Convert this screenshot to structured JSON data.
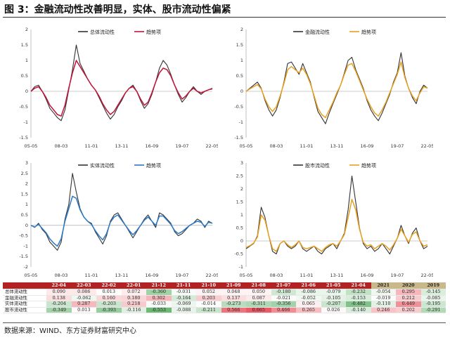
{
  "title": "图 3：金融流动性改善明显，实体、股市流动性偏紧",
  "source": "数据来源：WIND、东方证券财富研究中心",
  "colors": {
    "raw_line": "#333333",
    "trend_total": "#c0143c",
    "trend_finance": "#e8a020",
    "trend_real": "#2a78c8",
    "trend_stock": "#e8a020",
    "header_red": "#b22222",
    "header_year": "#c9b98a"
  },
  "chart_data": [
    {
      "type": "line",
      "title": "",
      "x_ticks": [
        "05-05",
        "08-03",
        "11-01",
        "13-11",
        "16-09",
        "19-07",
        "22-05"
      ],
      "ylim": [
        -1.5,
        2
      ],
      "y_ticks": [
        "2",
        "1.5",
        "1",
        "0.5",
        "0",
        "-0.5",
        "-1",
        "-1.5"
      ],
      "legend_position": "top-center",
      "series": [
        {
          "name": "总体流动性",
          "values": [
            0.0,
            0.15,
            0.2,
            0.0,
            -0.25,
            -0.55,
            -0.7,
            -0.85,
            -0.95,
            -0.6,
            0.05,
            0.7,
            1.5,
            0.9,
            0.65,
            0.4,
            0.2,
            0.05,
            -0.2,
            -0.45,
            -0.7,
            -0.9,
            -0.75,
            -0.5,
            -0.3,
            -0.05,
            0.1,
            0.2,
            0.0,
            -0.3,
            -0.55,
            -0.4,
            -0.1,
            0.3,
            0.75,
            1.0,
            0.85,
            0.55,
            0.2,
            -0.1,
            -0.35,
            -0.2,
            0.0,
            0.15,
            0.0,
            -0.1,
            0.0,
            0.05,
            0.1
          ]
        },
        {
          "name": "趋势项",
          "values": [
            0.0,
            0.1,
            0.15,
            0.0,
            -0.2,
            -0.45,
            -0.6,
            -0.75,
            -0.8,
            -0.45,
            0.1,
            0.6,
            1.0,
            0.8,
            0.6,
            0.4,
            0.2,
            0.05,
            -0.15,
            -0.4,
            -0.6,
            -0.75,
            -0.65,
            -0.45,
            -0.25,
            -0.05,
            0.1,
            0.15,
            0.0,
            -0.25,
            -0.45,
            -0.35,
            -0.05,
            0.3,
            0.6,
            0.75,
            0.7,
            0.5,
            0.2,
            -0.05,
            -0.25,
            -0.15,
            0.0,
            0.1,
            0.0,
            -0.05,
            0.0,
            0.05,
            0.08
          ]
        }
      ]
    },
    {
      "type": "line",
      "title": "",
      "x_ticks": [
        "05-05",
        "08-03",
        "11-01",
        "13-11",
        "16-09",
        "19-07",
        "22-05"
      ],
      "ylim": [
        -1.5,
        2
      ],
      "y_ticks": [
        "2",
        "1.5",
        "1",
        "0.5",
        "0",
        "-0.5",
        "-1",
        "-1.5"
      ],
      "legend_position": "top-center",
      "series": [
        {
          "name": "金融流动性",
          "values": [
            0.0,
            0.1,
            0.2,
            0.3,
            0.1,
            -0.3,
            -0.6,
            -0.8,
            -0.6,
            -0.2,
            0.3,
            0.9,
            0.95,
            0.75,
            0.55,
            0.9,
            0.6,
            0.3,
            -0.2,
            -0.65,
            -0.85,
            -1.05,
            -0.7,
            -0.4,
            -0.1,
            0.2,
            0.6,
            1.0,
            1.1,
            0.7,
            0.4,
            0.1,
            -0.3,
            -0.6,
            -0.8,
            -0.95,
            -0.7,
            -0.4,
            -0.1,
            0.3,
            0.6,
            1.25,
            0.5,
            0.1,
            -0.2,
            -0.4,
            0.0,
            0.2,
            0.1
          ]
        },
        {
          "name": "趋势项",
          "values": [
            0.0,
            0.08,
            0.15,
            0.22,
            0.08,
            -0.25,
            -0.5,
            -0.65,
            -0.5,
            -0.15,
            0.25,
            0.7,
            0.8,
            0.7,
            0.6,
            0.75,
            0.55,
            0.25,
            -0.15,
            -0.55,
            -0.75,
            -0.85,
            -0.6,
            -0.35,
            -0.05,
            0.2,
            0.55,
            0.85,
            0.9,
            0.65,
            0.35,
            0.05,
            -0.25,
            -0.5,
            -0.7,
            -0.8,
            -0.6,
            -0.35,
            -0.05,
            0.25,
            0.55,
            0.95,
            0.45,
            0.1,
            -0.15,
            -0.3,
            -0.05,
            0.15,
            0.1
          ]
        }
      ]
    },
    {
      "type": "line",
      "title": "",
      "x_ticks": [
        "05-05",
        "08-03",
        "11-01",
        "13-11",
        "16-09",
        "19-07",
        "22-05"
      ],
      "ylim": [
        -2,
        3
      ],
      "y_ticks": [
        "3",
        "2.5",
        "2",
        "1.5",
        "1",
        "0.5",
        "0",
        "-0.5",
        "-1",
        "-1.5",
        "-2"
      ],
      "legend_position": "top-center",
      "series": [
        {
          "name": "实体流动性",
          "values": [
            0.0,
            -0.1,
            0.1,
            -0.2,
            -0.4,
            -0.8,
            -1.0,
            -1.2,
            -0.8,
            0.3,
            1.0,
            2.5,
            1.6,
            0.8,
            0.4,
            0.2,
            0.1,
            -0.3,
            -0.6,
            -0.9,
            -0.5,
            0.2,
            0.5,
            0.6,
            0.3,
            0.0,
            -0.3,
            -0.6,
            -0.3,
            0.0,
            0.3,
            0.5,
            0.2,
            -0.1,
            0.6,
            0.5,
            0.3,
            0.1,
            -0.3,
            -0.5,
            -0.4,
            -0.2,
            0.0,
            0.1,
            0.3,
            0.2,
            -0.1,
            0.2,
            0.1
          ]
        },
        {
          "name": "趋势项",
          "values": [
            0.0,
            -0.08,
            0.05,
            -0.15,
            -0.35,
            -0.65,
            -0.85,
            -1.0,
            -0.65,
            0.2,
            0.8,
            1.4,
            1.3,
            0.75,
            0.4,
            0.2,
            0.05,
            -0.25,
            -0.5,
            -0.7,
            -0.4,
            0.15,
            0.4,
            0.5,
            0.25,
            0.0,
            -0.25,
            -0.45,
            -0.25,
            0.0,
            0.25,
            0.4,
            0.2,
            0.0,
            0.45,
            0.45,
            0.25,
            0.05,
            -0.25,
            -0.4,
            -0.3,
            -0.15,
            0.0,
            0.1,
            0.2,
            0.15,
            -0.05,
            0.15,
            0.1
          ]
        }
      ]
    },
    {
      "type": "line",
      "title": "",
      "x_ticks": [
        "05-05",
        "08-03",
        "11-01",
        "13-11",
        "16-09",
        "19-07",
        "22-05"
      ],
      "ylim": [
        -1,
        3
      ],
      "y_ticks": [
        "3",
        "2.5",
        "2",
        "1.5",
        "1",
        "0.5",
        "0",
        "-0.5",
        "-1"
      ],
      "legend_position": "top-center",
      "series": [
        {
          "name": "股市流动性",
          "values": [
            -0.3,
            -0.2,
            -0.1,
            0.2,
            1.3,
            0.9,
            0.2,
            -0.4,
            -0.5,
            -0.1,
            0.0,
            -0.2,
            -0.3,
            -0.2,
            0.0,
            -0.3,
            -0.4,
            -0.3,
            -0.2,
            -0.4,
            -0.5,
            -0.3,
            -0.2,
            -0.1,
            -0.3,
            0.0,
            0.3,
            1.2,
            2.5,
            1.5,
            0.5,
            -0.1,
            -0.3,
            -0.2,
            -0.4,
            -0.3,
            -0.1,
            -0.3,
            -0.5,
            -0.2,
            0.1,
            0.6,
            0.2,
            -0.1,
            0.3,
            0.5,
            0.0,
            -0.3,
            -0.2
          ]
        },
        {
          "name": "趋势项",
          "values": [
            -0.25,
            -0.18,
            -0.08,
            0.15,
            1.0,
            0.8,
            0.2,
            -0.3,
            -0.4,
            -0.1,
            0.0,
            -0.15,
            -0.25,
            -0.15,
            0.0,
            -0.25,
            -0.3,
            -0.25,
            -0.2,
            -0.3,
            -0.4,
            -0.25,
            -0.15,
            -0.1,
            -0.2,
            0.0,
            0.25,
            0.9,
            1.6,
            1.2,
            0.45,
            -0.05,
            -0.2,
            -0.15,
            -0.3,
            -0.2,
            -0.1,
            -0.2,
            -0.35,
            -0.15,
            0.1,
            0.45,
            0.2,
            -0.05,
            0.25,
            0.35,
            0.0,
            -0.2,
            -0.15
          ]
        }
      ]
    }
  ],
  "table": {
    "headers": [
      "22-04",
      "22-03",
      "22-02",
      "22-01",
      "21-12",
      "21-11",
      "21-10",
      "21-09",
      "21-08",
      "21-07",
      "21-06",
      "21-05",
      "21-04",
      "2021",
      "2020",
      "2019"
    ],
    "year_header_count": 3,
    "rows": [
      {
        "label": "总体流动性",
        "values": [
          "0.090",
          "0.086",
          "0.013",
          "0.072",
          "-0.360",
          "-0.031",
          "0.052",
          "0.048",
          "0.050",
          "-0.180",
          "-0.086",
          "-0.079",
          "-0.232",
          "-0.054",
          "0.295",
          "-0.145"
        ]
      },
      {
        "label": "金融流动性",
        "values": [
          "0.138",
          "-0.062",
          "0.160",
          "0.180",
          "0.302",
          "-0.164",
          "0.203",
          "0.137",
          "0.087",
          "-0.021",
          "-0.052",
          "-0.105",
          "-0.153",
          "-0.019",
          "0.212",
          "-0.085"
        ]
      },
      {
        "label": "实体流动性",
        "values": [
          "-0.204",
          "0.287",
          "-0.203",
          "0.218",
          "-0.033",
          "-0.069",
          "-0.014",
          "-0.273",
          "-0.311",
          "-0.356",
          "0.065",
          "-0.207",
          "-0.482",
          "-0.110",
          "0.449",
          "-0.195"
        ]
      },
      {
        "label": "股市流动性",
        "values": [
          "-0.349",
          "0.013",
          "-0.393",
          "-0.116",
          "-0.553",
          "-0.088",
          "-0.211",
          "0.566",
          "0.665",
          "0.466",
          "0.265",
          "0.026",
          "-0.140",
          "0.246",
          "0.202",
          "-0.291"
        ]
      }
    ]
  }
}
